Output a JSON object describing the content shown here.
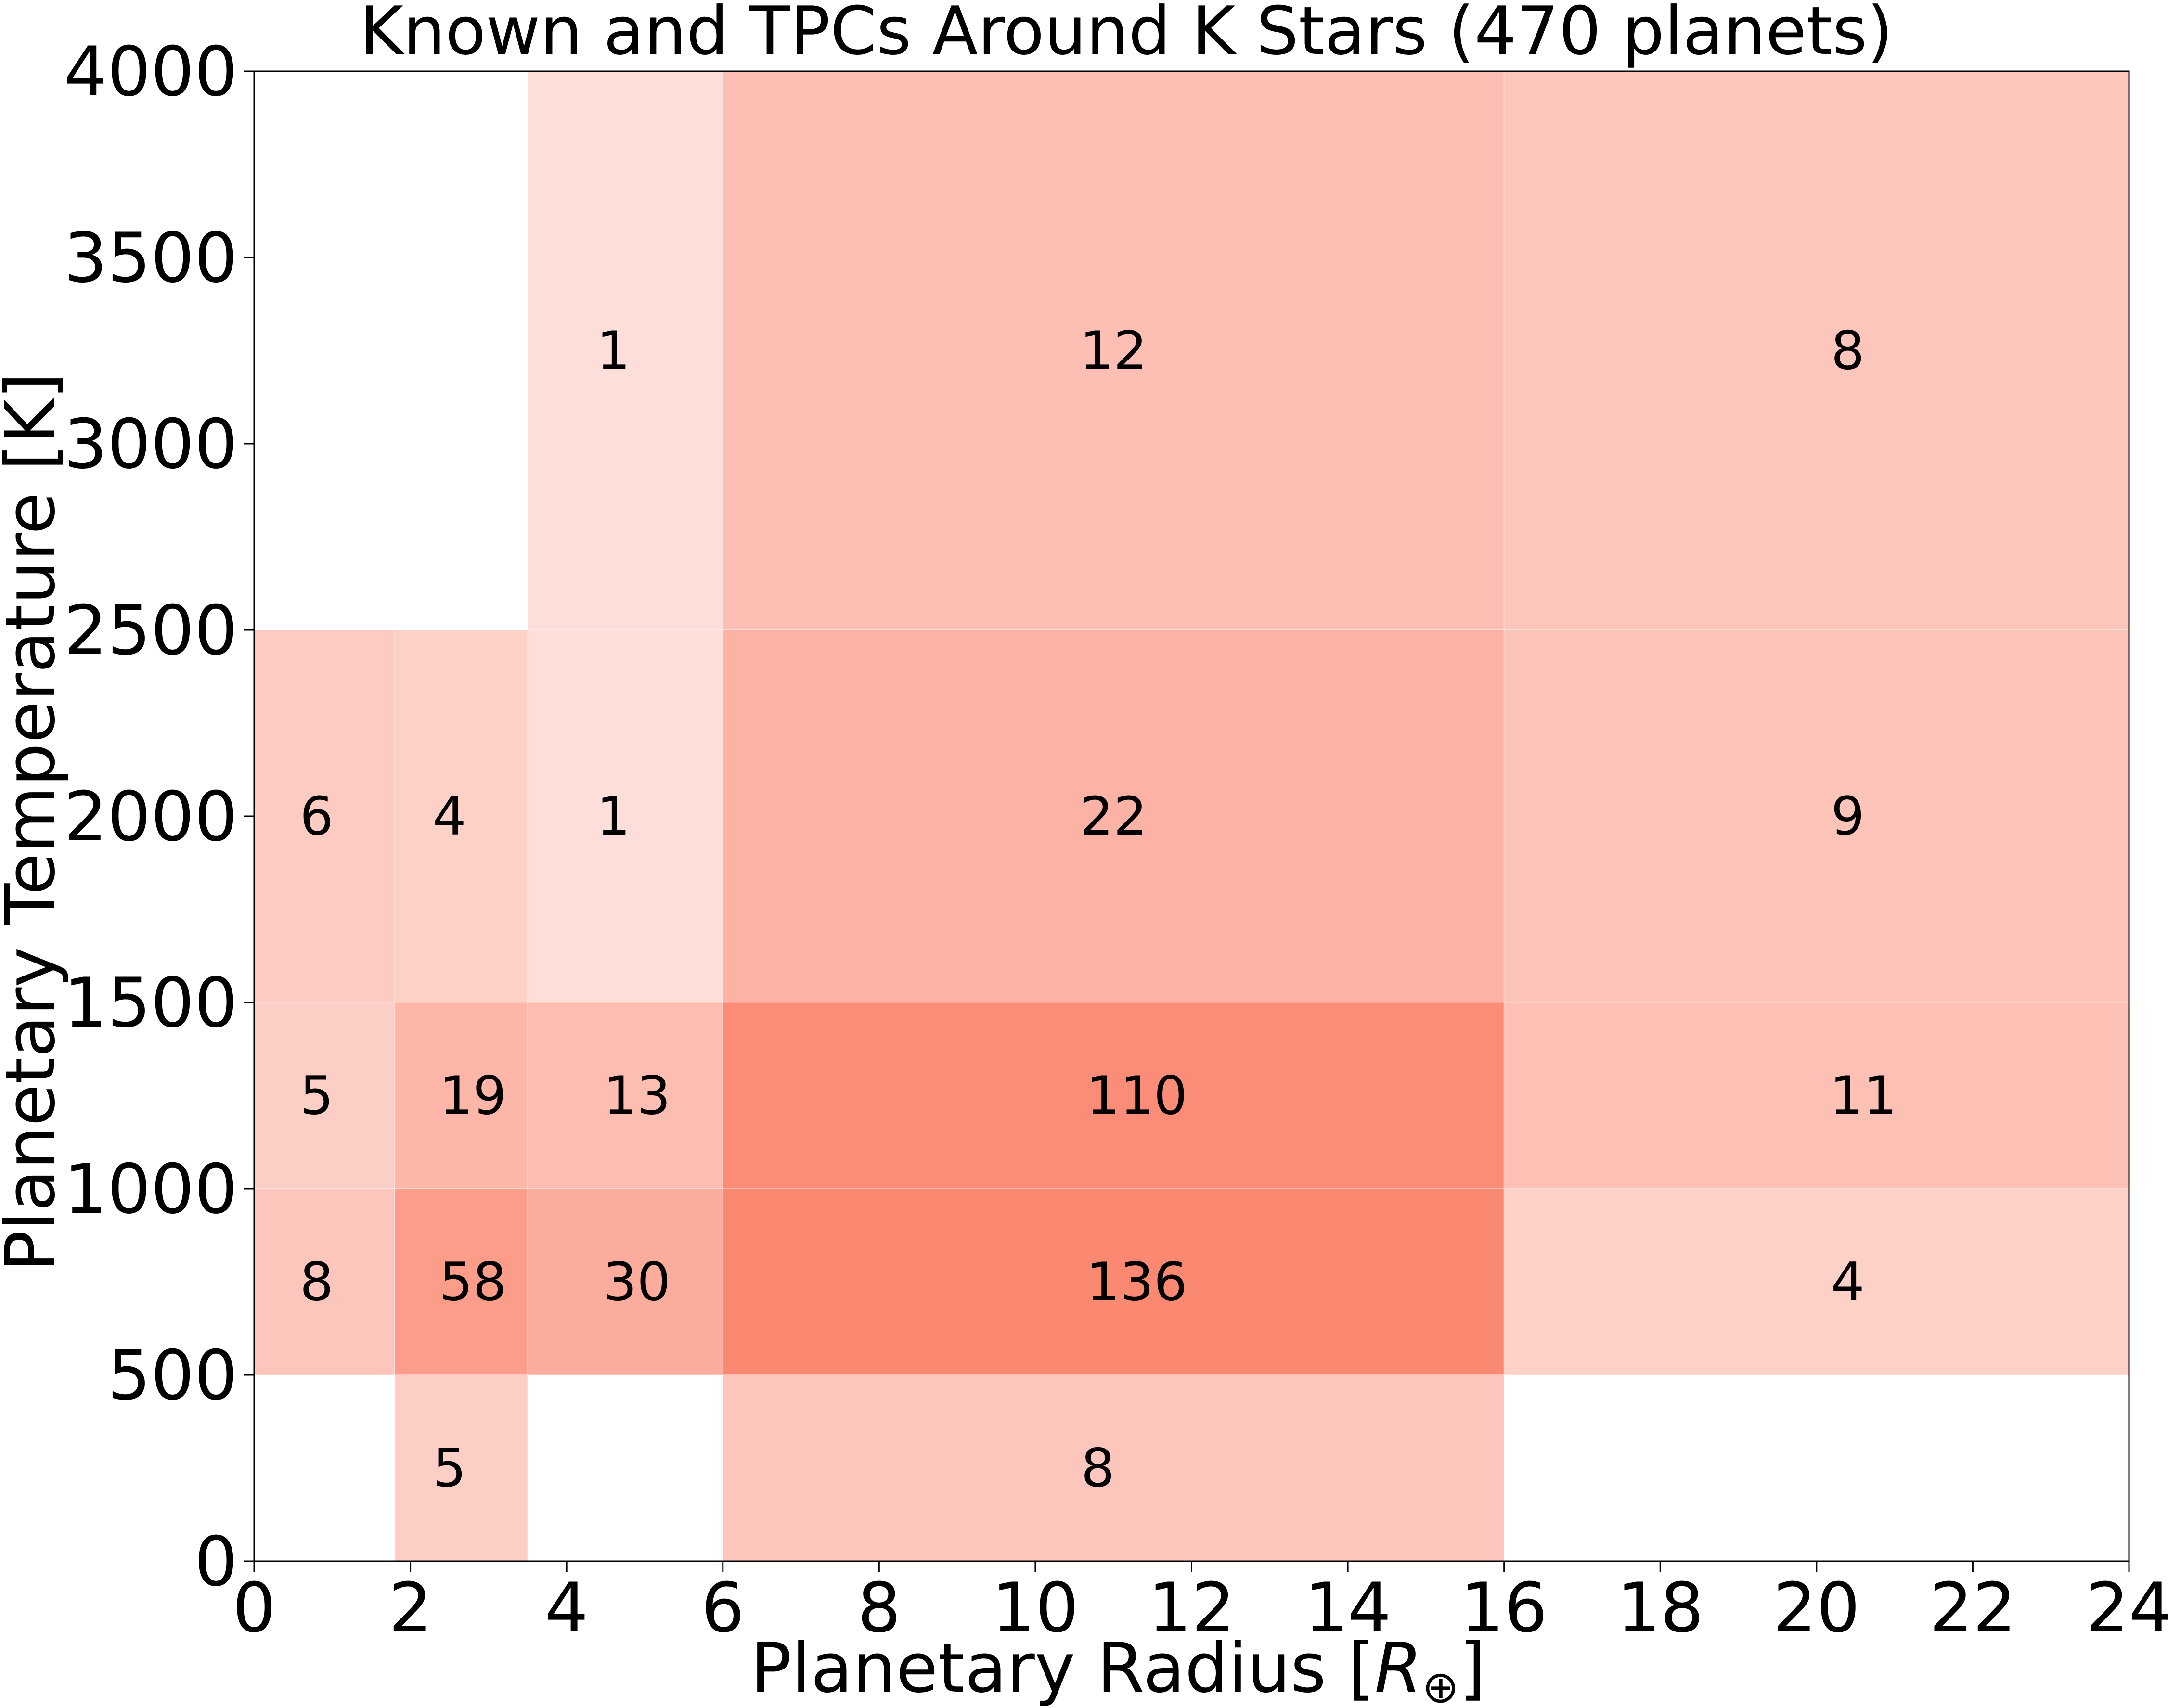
{
  "chart_data": {
    "type": "heatmap",
    "title": "Known and TPCs Around K Stars (470 planets)",
    "xlabel": "Planetary Radius [",
    "xlabel_symbol": "R",
    "xlabel_subscript": "⊕",
    "xlabel_close": "]",
    "ylabel": "Planetary Temperature [K]",
    "xlim": [
      0,
      24
    ],
    "ylim": [
      0,
      4000
    ],
    "xticks": [
      0,
      2,
      4,
      6,
      8,
      10,
      12,
      14,
      16,
      18,
      20,
      22,
      24
    ],
    "yticks": [
      0,
      500,
      1000,
      1500,
      2000,
      2500,
      3000,
      3500,
      4000
    ],
    "grid": false,
    "color": "#fa6a4e",
    "x_bins": [
      0,
      1.8,
      3.5,
      6,
      16,
      24
    ],
    "y_bins": [
      0,
      500,
      1000,
      1500,
      2500,
      4000
    ],
    "cells": [
      {
        "x0": 3.5,
        "x1": 6,
        "y0": 2500,
        "y1": 4000,
        "count": 1,
        "label_x": 4.6
      },
      {
        "x0": 6,
        "x1": 16,
        "y0": 2500,
        "y1": 4000,
        "count": 12,
        "label_x": 11.0
      },
      {
        "x0": 16,
        "x1": 24,
        "y0": 2500,
        "y1": 4000,
        "count": 8,
        "label_x": 20.4
      },
      {
        "x0": 0,
        "x1": 1.8,
        "y0": 1500,
        "y1": 2500,
        "count": 6,
        "label_x": 0.8
      },
      {
        "x0": 1.8,
        "x1": 3.5,
        "y0": 1500,
        "y1": 2500,
        "count": 4,
        "label_x": 2.5
      },
      {
        "x0": 3.5,
        "x1": 6,
        "y0": 1500,
        "y1": 2500,
        "count": 1,
        "label_x": 4.6
      },
      {
        "x0": 6,
        "x1": 16,
        "y0": 1500,
        "y1": 2500,
        "count": 22,
        "label_x": 11.0
      },
      {
        "x0": 16,
        "x1": 24,
        "y0": 1500,
        "y1": 2500,
        "count": 9,
        "label_x": 20.4
      },
      {
        "x0": 0,
        "x1": 1.8,
        "y0": 1000,
        "y1": 1500,
        "count": 5,
        "label_x": 0.8
      },
      {
        "x0": 1.8,
        "x1": 3.5,
        "y0": 1000,
        "y1": 1500,
        "count": 19,
        "label_x": 2.8
      },
      {
        "x0": 3.5,
        "x1": 6,
        "y0": 1000,
        "y1": 1500,
        "count": 13,
        "label_x": 4.9
      },
      {
        "x0": 6,
        "x1": 16,
        "y0": 1000,
        "y1": 1500,
        "count": 110,
        "label_x": 11.3
      },
      {
        "x0": 16,
        "x1": 24,
        "y0": 1000,
        "y1": 1500,
        "count": 11,
        "label_x": 20.6
      },
      {
        "x0": 0,
        "x1": 1.8,
        "y0": 500,
        "y1": 1000,
        "count": 8,
        "label_x": 0.8
      },
      {
        "x0": 1.8,
        "x1": 3.5,
        "y0": 500,
        "y1": 1000,
        "count": 58,
        "label_x": 2.8
      },
      {
        "x0": 3.5,
        "x1": 6,
        "y0": 500,
        "y1": 1000,
        "count": 30,
        "label_x": 4.9
      },
      {
        "x0": 6,
        "x1": 16,
        "y0": 500,
        "y1": 1000,
        "count": 136,
        "label_x": 11.3
      },
      {
        "x0": 16,
        "x1": 24,
        "y0": 500,
        "y1": 1000,
        "count": 4,
        "label_x": 20.4
      },
      {
        "x0": 1.8,
        "x1": 3.5,
        "y0": 0,
        "y1": 500,
        "count": 5,
        "label_x": 2.5
      },
      {
        "x0": 6,
        "x1": 16,
        "y0": 0,
        "y1": 500,
        "count": 8,
        "label_x": 10.8
      }
    ]
  }
}
